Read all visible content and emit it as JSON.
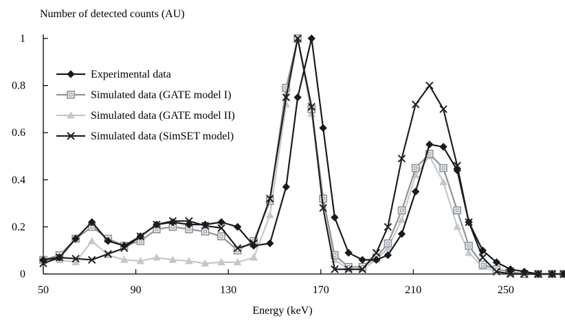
{
  "chart_data": {
    "type": "line",
    "title": "",
    "ylabel": "Number of detected counts (AU)",
    "xlabel": "Energy (keV)",
    "xlim": [
      50,
      275
    ],
    "ylim": [
      0,
      1
    ],
    "xticks": [
      50,
      90,
      130,
      170,
      210,
      250
    ],
    "yticks": [
      0,
      0.2,
      0.4,
      0.6,
      0.8,
      1
    ],
    "xtick_labels": [
      "50",
      "90",
      "130",
      "170",
      "210",
      "250"
    ],
    "ytick_labels": [
      "0",
      "0.2",
      "0.4",
      "0.6",
      "0.8",
      "1"
    ],
    "grid": false,
    "legend_position": "upper-left",
    "series": [
      {
        "name": "Experimental data",
        "color": "#1a1a1a",
        "marker": "diamond",
        "x": [
          50,
          57,
          64,
          71,
          78,
          85,
          92,
          99,
          106,
          113,
          120,
          127,
          134,
          141,
          148,
          155,
          160,
          166,
          171,
          176,
          182,
          188,
          194,
          199,
          205,
          211,
          217,
          223,
          229,
          234,
          240,
          246,
          252,
          258,
          264,
          270,
          275
        ],
        "y": [
          0.06,
          0.07,
          0.15,
          0.22,
          0.14,
          0.12,
          0.16,
          0.21,
          0.22,
          0.21,
          0.21,
          0.22,
          0.2,
          0.12,
          0.13,
          0.37,
          0.75,
          1.0,
          0.62,
          0.24,
          0.09,
          0.06,
          0.06,
          0.08,
          0.17,
          0.35,
          0.55,
          0.54,
          0.44,
          0.22,
          0.1,
          0.05,
          0.02,
          0.01,
          0,
          0,
          0
        ]
      },
      {
        "name": "Simulated data (GATE model I)",
        "color": "#8c939a",
        "marker": "square",
        "x": [
          50,
          57,
          64,
          71,
          78,
          85,
          92,
          99,
          106,
          113,
          120,
          127,
          134,
          141,
          148,
          155,
          160,
          166,
          171,
          176,
          182,
          188,
          194,
          199,
          205,
          211,
          217,
          223,
          229,
          234,
          240,
          246,
          252,
          258,
          264,
          270,
          275
        ],
        "y": [
          0.06,
          0.08,
          0.15,
          0.2,
          0.15,
          0.12,
          0.14,
          0.19,
          0.2,
          0.19,
          0.18,
          0.16,
          0.1,
          0.14,
          0.31,
          0.79,
          1.0,
          0.7,
          0.32,
          0.08,
          0.03,
          0.03,
          0.07,
          0.13,
          0.27,
          0.45,
          0.51,
          0.45,
          0.27,
          0.12,
          0.04,
          0.02,
          0.01,
          0,
          0,
          0,
          0
        ]
      },
      {
        "name": "Simulated data (GATE model II)",
        "color": "#c4c8cc",
        "marker": "triangle",
        "x": [
          50,
          57,
          64,
          71,
          78,
          85,
          92,
          99,
          106,
          113,
          120,
          127,
          134,
          141,
          148,
          155,
          160,
          166,
          171,
          176,
          182,
          188,
          194,
          199,
          205,
          211,
          217,
          223,
          229,
          234,
          240,
          246,
          252,
          258,
          264,
          270,
          275
        ],
        "y": [
          0.06,
          0.06,
          0.05,
          0.14,
          0.08,
          0.06,
          0.055,
          0.07,
          0.06,
          0.055,
          0.045,
          0.05,
          0.05,
          0.07,
          0.25,
          0.72,
          1.0,
          0.68,
          0.33,
          0.06,
          0.02,
          0.02,
          0.06,
          0.11,
          0.23,
          0.42,
          0.5,
          0.39,
          0.2,
          0.09,
          0.03,
          0.01,
          0,
          0,
          0,
          0,
          0
        ]
      },
      {
        "name": "Simulated data (SimSET model)",
        "color": "#1f1f1f",
        "marker": "x",
        "x": [
          50,
          57,
          64,
          71,
          78,
          85,
          92,
          99,
          106,
          113,
          120,
          127,
          134,
          141,
          148,
          155,
          160,
          166,
          171,
          176,
          182,
          188,
          194,
          199,
          205,
          211,
          217,
          223,
          229,
          234,
          240,
          246,
          252,
          258,
          264,
          270,
          275
        ],
        "y": [
          0.045,
          0.07,
          0.065,
          0.06,
          0.085,
          0.11,
          0.16,
          0.21,
          0.225,
          0.225,
          0.205,
          0.195,
          0.11,
          0.13,
          0.32,
          0.75,
          1.0,
          0.71,
          0.28,
          0.02,
          0.02,
          0.02,
          0.09,
          0.2,
          0.49,
          0.72,
          0.8,
          0.7,
          0.46,
          0.22,
          0.07,
          0.01,
          0,
          0,
          0,
          0,
          0
        ]
      }
    ]
  }
}
